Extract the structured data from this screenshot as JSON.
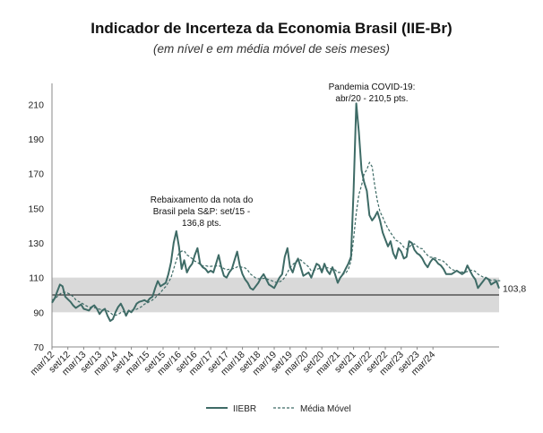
{
  "title": "Indicador de Incerteza da Economia Brasil (IIE-Br)",
  "subtitle": "(em nível e em média móvel de seis meses)",
  "colors": {
    "iiebr": "#3e6b66",
    "mm": "#3e6b66",
    "band": "#d9d9d9",
    "axis": "#888888"
  },
  "chart_data": {
    "type": "line",
    "ylim": [
      70,
      220
    ],
    "yticks": [
      70,
      90,
      110,
      130,
      150,
      170,
      190,
      210
    ],
    "band": [
      90,
      110
    ],
    "reference_line": 100,
    "end_label": "103,8",
    "x_tick_labels": [
      "mar/12",
      "set/12",
      "mar/13",
      "set/13",
      "mar/14",
      "set/14",
      "mar/15",
      "set/15",
      "mar/16",
      "set/16",
      "mar/17",
      "set/17",
      "mar/18",
      "set/18",
      "mar/19",
      "set/19",
      "mar/20",
      "set/20",
      "mar/21",
      "set/21",
      "mar/22",
      "set/22",
      "mar/23",
      "set/23",
      "mar/24"
    ],
    "annotations": [
      {
        "lines": [
          "Rebaixamento da nota do",
          "Brasil pela S&P: set/15 -",
          "136,8 pts."
        ]
      },
      {
        "lines": [
          "Pandemia COVID-19:",
          "abr/20 - 210,5 pts."
        ]
      }
    ],
    "legend": [
      "IIEBR",
      "Média Móvel"
    ],
    "series": [
      {
        "name": "IIEBR",
        "values": [
          95.5,
          98,
          102,
          106,
          105,
          99,
          97.5,
          96,
          94,
          92.5,
          93.5,
          94.5,
          92,
          91.5,
          91,
          93,
          94,
          92,
          89,
          91,
          92,
          88,
          85,
          86,
          90,
          93,
          95,
          92,
          88,
          91,
          90,
          92,
          95,
          96,
          96.5,
          97,
          96,
          98,
          99,
          104,
          108,
          105,
          106,
          107,
          112,
          119,
          130,
          136.8,
          128,
          115,
          120,
          113,
          116,
          118,
          123,
          127,
          118,
          116,
          115,
          113,
          114,
          113,
          118,
          123,
          116,
          111,
          110,
          113,
          115,
          120,
          125,
          117,
          112,
          109,
          107,
          104,
          103,
          105,
          107,
          110,
          112,
          109,
          106,
          105,
          104,
          107,
          110,
          112,
          122,
          127,
          116,
          113,
          118,
          121,
          116,
          111,
          112,
          113,
          110,
          114,
          118,
          117,
          113,
          118,
          114,
          112,
          116,
          112,
          107,
          110,
          112,
          115,
          118,
          122,
          160,
          210.5,
          194,
          172,
          165,
          160,
          146,
          143,
          145,
          148,
          143,
          136,
          132,
          128,
          131,
          124,
          121,
          127,
          125,
          121,
          122,
          131,
          130,
          126,
          124,
          123,
          121,
          118,
          116,
          119,
          121,
          120,
          118,
          117,
          115,
          112,
          112,
          112,
          113,
          114,
          113,
          112,
          113,
          117,
          114,
          111,
          109,
          104,
          106,
          108,
          110,
          109,
          106,
          107,
          108,
          103.8
        ]
      },
      {
        "name": "Média Móvel",
        "values": [
          97,
          98,
          99,
          100.5,
          101.5,
          101.5,
          101,
          100.3,
          99,
          97.2,
          96.3,
          95.5,
          94.6,
          93.7,
          93,
          92.6,
          92.6,
          92.4,
          91.8,
          91.4,
          91.3,
          90.9,
          89.7,
          88.6,
          88.2,
          88.8,
          89.8,
          90.4,
          90.2,
          90.5,
          91,
          91.4,
          91.8,
          92.5,
          93.4,
          94.7,
          95.3,
          96.3,
          97.1,
          98.4,
          100,
          101.3,
          103.3,
          104.8,
          107.2,
          110.1,
          115,
          120,
          124.1,
          125.3,
          125.4,
          123.1,
          122.2,
          120.9,
          119.5,
          118.9,
          117.6,
          116.7,
          116.9,
          116.5,
          116.5,
          116.7,
          116.7,
          116.8,
          116.3,
          115.2,
          114.5,
          114.8,
          115.1,
          115.3,
          116.2,
          116.3,
          115.9,
          115.6,
          114.3,
          112.1,
          110.9,
          109.8,
          109.3,
          109.3,
          109.6,
          109.4,
          108.8,
          108.3,
          107.6,
          107.1,
          107.6,
          108.3,
          110.2,
          113,
          115.8,
          117.4,
          119.1,
          120.2,
          120.2,
          118.8,
          117.6,
          116.2,
          113.9,
          114.2,
          114.8,
          115.2,
          114.9,
          115.2,
          115.7,
          115.3,
          114.9,
          114.5,
          113,
          113,
          112,
          112.5,
          114.6,
          119.6,
          132.4,
          147.3,
          157.9,
          163.2,
          169.9,
          172.3,
          176.4,
          174,
          163.2,
          154.2,
          148,
          144.9,
          141.4,
          138.4,
          135.9,
          133.7,
          131.5,
          130.9,
          129.5,
          127.5,
          126.4,
          127.6,
          129.1,
          129.5,
          128.1,
          126.9,
          126.7,
          124.4,
          122.8,
          121.8,
          121.7,
          121.3,
          120.4,
          120.1,
          119.4,
          118,
          116.3,
          114.8,
          114.2,
          113.6,
          113.3,
          113.2,
          113.2,
          113.5,
          114.2,
          114.3,
          113.6,
          112,
          111.1,
          110.3,
          109.9,
          109.4,
          108.4,
          108.7,
          108.7,
          108.1,
          108.6
        ]
      }
    ]
  }
}
